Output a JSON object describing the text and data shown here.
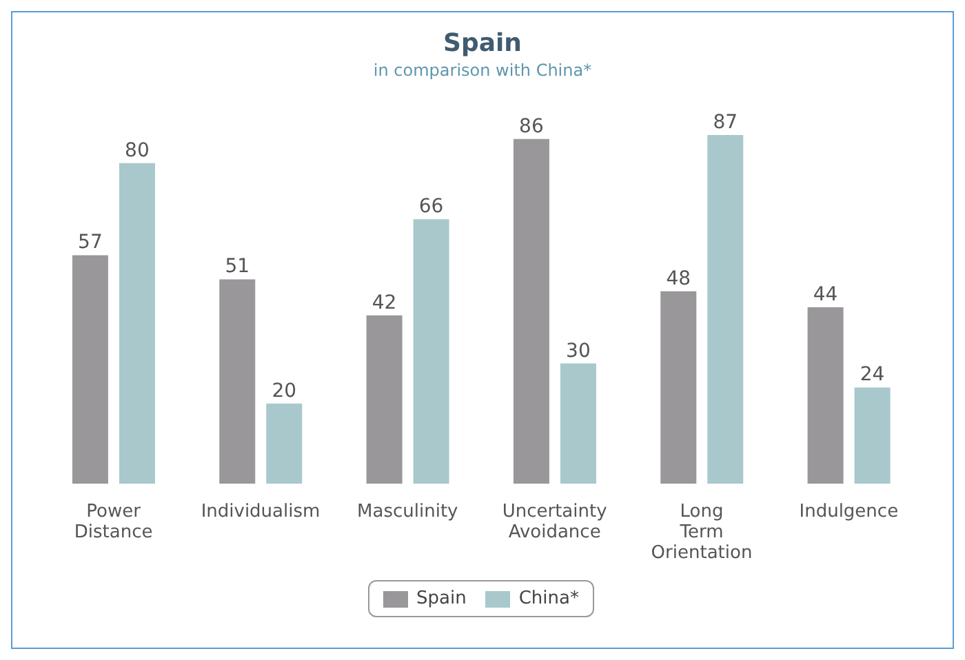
{
  "chart_data": {
    "type": "bar",
    "title": "Spain",
    "subtitle": "in comparison with China*",
    "categories": [
      "Power Distance",
      "Individualism",
      "Masculinity",
      "Uncertainty Avoidance",
      "Long Term Orientation",
      "Indulgence"
    ],
    "series": [
      {
        "name": "Spain",
        "color": "#999799",
        "values": [
          57,
          51,
          42,
          86,
          48,
          44
        ]
      },
      {
        "name": "China*",
        "color": "#a8c8cc",
        "values": [
          80,
          20,
          66,
          30,
          87,
          24
        ]
      }
    ],
    "data_labels": true,
    "legend": "bottom",
    "grid": false
  }
}
